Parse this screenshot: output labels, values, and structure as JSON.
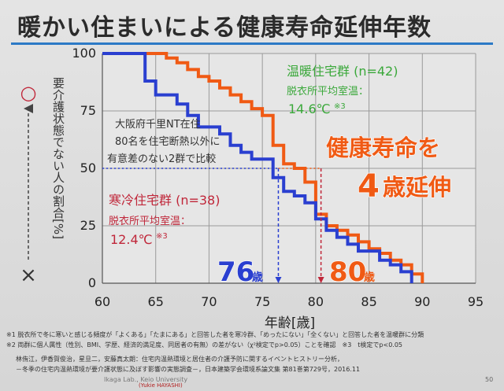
{
  "title": "暖かい住まいによる健康寿命延伸年数",
  "colors": {
    "warm": "#f05a14",
    "cold": "#2a3fd0",
    "green": "#3aa83a",
    "red": "#c0273a",
    "rule": "#2c7ac6"
  },
  "chart_data": {
    "type": "line",
    "xlabel": "年齢[歳]",
    "ylabel": "要介護状態でない人の割合[%]",
    "xlim": [
      60,
      95
    ],
    "ylim": [
      0,
      100
    ],
    "xticks": [
      "60",
      "65",
      "70",
      "75",
      "80",
      "85",
      "90",
      "95"
    ],
    "yticks": [
      "0",
      "25",
      "50",
      "75",
      "100"
    ],
    "grid": true,
    "series": [
      {
        "name": "温暖住宅群 (n=42)",
        "color": "#f05a14",
        "x": [
          60,
          66,
          66,
          67,
          67,
          68,
          68,
          69,
          69,
          70,
          70,
          71,
          71,
          72,
          72,
          73,
          73,
          74,
          74,
          75,
          75,
          76,
          76,
          77,
          77,
          78,
          78,
          79,
          79,
          80,
          80,
          81,
          81,
          82,
          82,
          83,
          83,
          84,
          84,
          85,
          85,
          86,
          86,
          87,
          87,
          88,
          88,
          89,
          89,
          90,
          90
        ],
        "y": [
          100,
          100,
          98,
          98,
          96,
          96,
          93,
          93,
          90,
          90,
          88,
          88,
          85,
          85,
          82,
          82,
          79,
          79,
          76,
          76,
          73,
          73,
          60,
          60,
          52,
          52,
          50,
          50,
          44,
          44,
          30,
          30,
          25,
          25,
          23,
          23,
          21,
          21,
          18,
          18,
          15,
          15,
          13,
          13,
          10,
          10,
          8,
          8,
          4,
          4,
          0
        ]
      },
      {
        "name": "寒冷住宅群 (n=38)",
        "color": "#2a3fd0",
        "x": [
          60,
          64,
          64,
          65,
          65,
          67,
          67,
          68,
          68,
          69,
          69,
          71,
          71,
          72,
          72,
          73,
          73,
          74,
          74,
          76,
          76,
          77,
          77,
          78,
          78,
          79,
          79,
          80,
          80,
          81,
          81,
          82,
          82,
          83,
          83,
          84,
          84,
          86,
          86,
          87,
          87,
          88,
          88,
          89,
          89
        ],
        "y": [
          100,
          100,
          88,
          88,
          82,
          82,
          78,
          78,
          73,
          73,
          68,
          68,
          65,
          65,
          60,
          60,
          57,
          57,
          54,
          54,
          46,
          46,
          40,
          40,
          38,
          38,
          35,
          35,
          28,
          28,
          23,
          23,
          20,
          20,
          17,
          17,
          14,
          14,
          10,
          10,
          8,
          8,
          5,
          5,
          0
        ]
      }
    ]
  },
  "legend": {
    "warm_label": "温暖住宅群 (n=42)",
    "warm_temp_label": "脱衣所平均室温：",
    "warm_temp_value": "14.6℃",
    "warm_temp_sup": "※3",
    "cold_label": "寒冷住宅群 (n=38)",
    "cold_temp_label": "脱衣所平均室温：",
    "cold_temp_value": "12.4℃",
    "cold_temp_sup": "※3"
  },
  "study_note": [
    "大阪府千里NT在住",
    "80名を住宅断熱以外に",
    "有意差のない2群で比較"
  ],
  "headline": {
    "line1": "健康寿命を",
    "big": "4",
    "line2": "歳延伸"
  },
  "markers": {
    "cold_age": "76",
    "cold_unit": "歳",
    "cold_x": 76.5,
    "warm_age": "80",
    "warm_unit": "歳",
    "warm_x": 80.5
  },
  "side": {
    "circle": "○",
    "cross": "×"
  },
  "footnotes": [
    "※1 脱衣所で冬に寒いと感じる頻度が「よくある」「たまにある」と回答した者を寒冷群、「めったにない」「全くない」と回答した者を温暖群に分類",
    "※2 両群に個人属性（性別、BMI、学歴、経済的満足度、同居者の有無）の差がない（χ²検定でp>0.05）ことを確認　※3　t検定でp<0.05",
    "林侑江，伊香賀俊治，星旦二，安藤真太朗：住宅内温熱環境と居住者の介護予防に関するイベントヒストリー分析，",
    "－冬季の住宅内温熱環境が要介護状態に及ぼす影響の実態調査－，日本建築学会環境系論文集 第81巻第729号，2016.11"
  ],
  "lab": "Ikaga Lab., Keio University",
  "author": "(Yukie HAYASHI)",
  "page": "50"
}
